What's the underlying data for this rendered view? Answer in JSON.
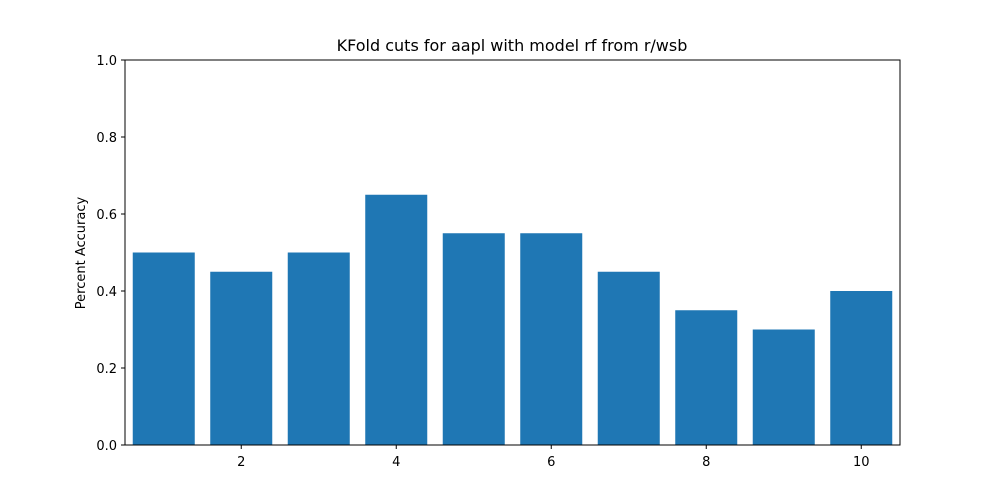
{
  "chart_data": {
    "type": "bar",
    "title": "KFold cuts for aapl with model rf from r/wsb",
    "xlabel": "",
    "ylabel": "Percent Accuracy",
    "x": [
      1,
      2,
      3,
      4,
      5,
      6,
      7,
      8,
      9,
      10
    ],
    "values": [
      0.5,
      0.45,
      0.5,
      0.65,
      0.55,
      0.55,
      0.45,
      0.35,
      0.3,
      0.4
    ],
    "xlim": [
      0.5,
      10.5
    ],
    "ylim": [
      0,
      1
    ],
    "xticks": [
      2,
      4,
      6,
      8,
      10
    ],
    "xtick_labels": [
      "2",
      "4",
      "6",
      "8",
      "10"
    ],
    "yticks": [
      0,
      0.2,
      0.4,
      0.6,
      0.8,
      1
    ],
    "ytick_labels": [
      "0.0",
      "0.2",
      "0.4",
      "0.6",
      "0.8",
      "1.0"
    ],
    "bar_color": "#1f77b4",
    "grid": false,
    "legend": "none"
  }
}
